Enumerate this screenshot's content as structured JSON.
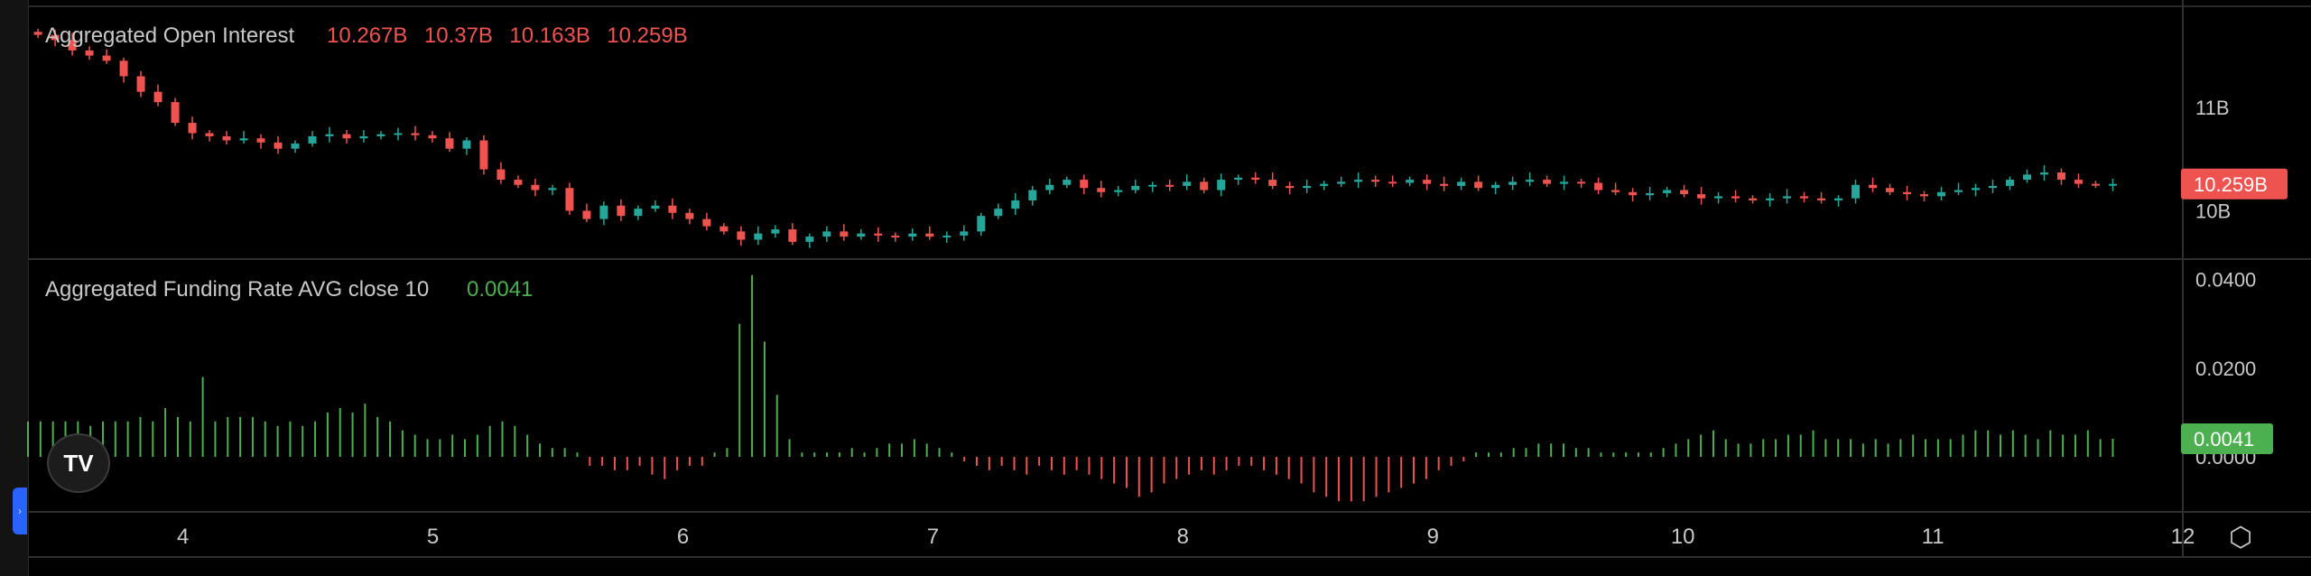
{
  "chart_data": [
    {
      "type": "candlestick",
      "title": "Aggregated Open Interest",
      "legend_values": [
        "10.267B",
        "10.37B",
        "10.163B",
        "10.259B"
      ],
      "last_value_label": "10.259B",
      "y_ticks": [
        {
          "value": 11.0,
          "label": "11B"
        },
        {
          "value": 10.0,
          "label": "10B"
        }
      ],
      "ylim": [
        9.55,
        11.95
      ],
      "last_value": 10.259,
      "colors": {
        "up": "#26a69a",
        "down": "#ef5350",
        "badge": "#ef5350"
      },
      "close_series": [
        11.7,
        11.65,
        11.55,
        11.5,
        11.45,
        11.3,
        11.15,
        11.05,
        10.85,
        10.75,
        10.72,
        10.68,
        10.7,
        10.66,
        10.6,
        10.65,
        10.72,
        10.74,
        10.7,
        10.72,
        10.74,
        10.75,
        10.73,
        10.7,
        10.6,
        10.68,
        10.4,
        10.3,
        10.25,
        10.2,
        10.22,
        10.0,
        9.92,
        10.05,
        9.95,
        10.02,
        10.05,
        9.98,
        9.92,
        9.85,
        9.8,
        9.72,
        9.78,
        9.82,
        9.7,
        9.75,
        9.8,
        9.75,
        9.78,
        9.76,
        9.75,
        9.78,
        9.75,
        9.76,
        9.8,
        9.95,
        10.02,
        10.1,
        10.2,
        10.25,
        10.3,
        10.22,
        10.18,
        10.2,
        10.24,
        10.25,
        10.24,
        10.28,
        10.2,
        10.3,
        10.32,
        10.3,
        10.24,
        10.22,
        10.24,
        10.26,
        10.28,
        10.3,
        10.28,
        10.27,
        10.3,
        10.26,
        10.24,
        10.28,
        10.22,
        10.25,
        10.28,
        10.3,
        10.26,
        10.28,
        10.27,
        10.2,
        10.18,
        10.15,
        10.17,
        10.2,
        10.16,
        10.12,
        10.14,
        10.12,
        10.1,
        10.12,
        10.14,
        10.12,
        10.1,
        10.12,
        10.25,
        10.22,
        10.18,
        10.16,
        10.14,
        10.18,
        10.2,
        10.22,
        10.24,
        10.3,
        10.35,
        10.37,
        10.3,
        10.26,
        10.25,
        10.259
      ]
    },
    {
      "type": "bar",
      "title": "Aggregated Funding Rate AVG close 10",
      "legend_value": "0.0041",
      "last_value_label": "0.0041",
      "y_ticks": [
        {
          "value": 0.04,
          "label": "0.0400"
        },
        {
          "value": 0.02,
          "label": "0.0200"
        },
        {
          "value": 0.0,
          "label": "0.0000"
        }
      ],
      "ylim": [
        -0.012,
        0.044
      ],
      "last_value": 0.0041,
      "colors": {
        "positive": "#4caf50",
        "negative": "#ef5350",
        "badge": "#4caf50"
      },
      "values": [
        0.008,
        0.008,
        0.008,
        0.008,
        0.008,
        0.007,
        0.008,
        0.008,
        0.008,
        0.009,
        0.008,
        0.011,
        0.009,
        0.008,
        0.018,
        0.008,
        0.009,
        0.009,
        0.009,
        0.008,
        0.007,
        0.008,
        0.007,
        0.008,
        0.01,
        0.011,
        0.01,
        0.012,
        0.009,
        0.008,
        0.006,
        0.005,
        0.004,
        0.004,
        0.005,
        0.004,
        0.005,
        0.007,
        0.008,
        0.007,
        0.005,
        0.003,
        0.002,
        0.002,
        0.001,
        -0.002,
        -0.002,
        -0.003,
        -0.003,
        -0.002,
        -0.004,
        -0.005,
        -0.003,
        -0.002,
        -0.002,
        0.001,
        0.002,
        0.03,
        0.041,
        0.026,
        0.014,
        0.004,
        0.001,
        0.001,
        0.001,
        0.001,
        0.002,
        0.001,
        0.002,
        0.003,
        0.003,
        0.004,
        0.003,
        0.002,
        0.001,
        -0.001,
        -0.002,
        -0.003,
        -0.002,
        -0.003,
        -0.004,
        -0.002,
        -0.003,
        -0.004,
        -0.003,
        -0.004,
        -0.005,
        -0.006,
        -0.007,
        -0.009,
        -0.008,
        -0.006,
        -0.005,
        -0.004,
        -0.003,
        -0.004,
        -0.003,
        -0.002,
        -0.002,
        -0.003,
        -0.004,
        -0.005,
        -0.006,
        -0.008,
        -0.009,
        -0.01,
        -0.01,
        -0.01,
        -0.009,
        -0.008,
        -0.007,
        -0.006,
        -0.005,
        -0.003,
        -0.002,
        -0.001,
        0.001,
        0.001,
        0.001,
        0.002,
        0.002,
        0.003,
        0.003,
        0.003,
        0.002,
        0.002,
        0.001,
        0.001,
        0.001,
        0.001,
        0.001,
        0.002,
        0.003,
        0.004,
        0.005,
        0.006,
        0.004,
        0.003,
        0.003,
        0.004,
        0.004,
        0.005,
        0.005,
        0.006,
        0.004,
        0.004,
        0.004,
        0.003,
        0.004,
        0.003,
        0.004,
        0.005,
        0.004,
        0.004,
        0.004,
        0.005,
        0.006,
        0.006,
        0.005,
        0.006,
        0.005,
        0.004,
        0.006,
        0.005,
        0.005,
        0.006,
        0.004,
        0.0041
      ]
    }
  ],
  "x_axis": {
    "ticks": [
      {
        "value": 4,
        "label": "4"
      },
      {
        "value": 5,
        "label": "5"
      },
      {
        "value": 6,
        "label": "6"
      },
      {
        "value": 7,
        "label": "7"
      },
      {
        "value": 8,
        "label": "8"
      },
      {
        "value": 9,
        "label": "9"
      },
      {
        "value": 10,
        "label": "10"
      },
      {
        "value": 11,
        "label": "11"
      },
      {
        "value": 12,
        "label": "12"
      }
    ],
    "range": [
      3.38,
      12.0
    ],
    "data_end": 11.72
  },
  "ui": {
    "logo_text": "TV",
    "settings_icon": "settings-hexagon-icon",
    "expand_icon": "chevron-right-icon"
  }
}
